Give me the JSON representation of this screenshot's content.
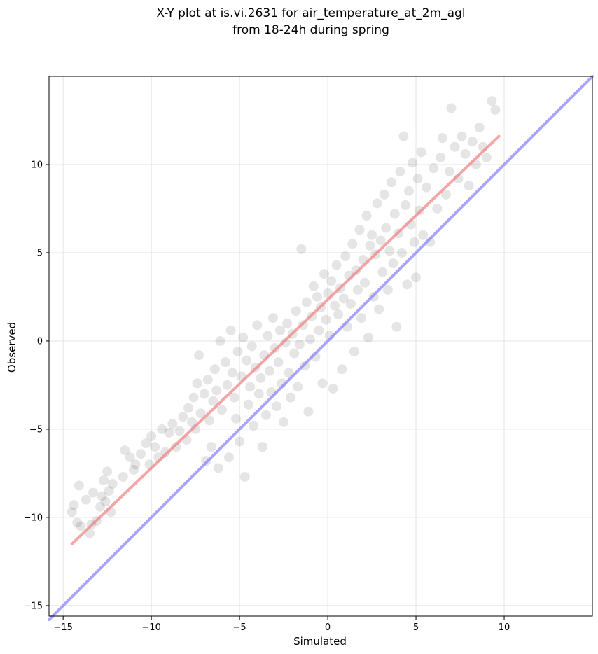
{
  "chart_data": {
    "type": "scatter",
    "title": "X-Y plot at is.vi.2631 for air_temperature_at_2m_agl",
    "subtitle": "from 18-24h during spring",
    "xlabel": "Simulated",
    "ylabel": "Observed",
    "xlim": [
      -15.8,
      15.0
    ],
    "ylim": [
      -15.6,
      15.0
    ],
    "xticks": [
      -15,
      -10,
      -5,
      0,
      5,
      10
    ],
    "yticks": [
      -15,
      -10,
      -5,
      0,
      5,
      10
    ],
    "xtick_labels": [
      "−15",
      "−10",
      "−5",
      "0",
      "5",
      "10"
    ],
    "ytick_labels": [
      "−15",
      "−10",
      "−5",
      "0",
      "5",
      "10"
    ],
    "grid": true,
    "point_color": "#000000",
    "series": [
      {
        "points": [
          [
            -14.5,
            -9.7
          ],
          [
            -14.4,
            -9.3
          ],
          [
            -14.2,
            -10.3
          ],
          [
            -14.1,
            -8.2
          ],
          [
            -14.0,
            -10.5
          ],
          [
            -13.7,
            -9.0
          ],
          [
            -13.5,
            -10.9
          ],
          [
            -13.4,
            -10.4
          ],
          [
            -13.3,
            -8.6
          ],
          [
            -13.1,
            -10.2
          ],
          [
            -12.9,
            -9.4
          ],
          [
            -12.8,
            -8.8
          ],
          [
            -12.7,
            -7.9
          ],
          [
            -12.6,
            -9.1
          ],
          [
            -12.5,
            -7.4
          ],
          [
            -12.4,
            -8.5
          ],
          [
            -12.3,
            -9.7
          ],
          [
            -12.2,
            -8.1
          ],
          [
            -11.6,
            -7.7
          ],
          [
            -11.5,
            -6.2
          ],
          [
            -11.2,
            -6.6
          ],
          [
            -11.0,
            -7.3
          ],
          [
            -10.9,
            -7.0
          ],
          [
            -10.6,
            -6.4
          ],
          [
            -10.3,
            -5.8
          ],
          [
            -10.1,
            -7.0
          ],
          [
            -10.0,
            -5.4
          ],
          [
            -9.8,
            -6.0
          ],
          [
            -9.6,
            -6.6
          ],
          [
            -9.4,
            -5.0
          ],
          [
            -9.2,
            -6.3
          ],
          [
            -9.0,
            -5.2
          ],
          [
            -8.8,
            -4.7
          ],
          [
            -8.6,
            -6.0
          ],
          [
            -8.4,
            -5.1
          ],
          [
            -8.2,
            -4.3
          ],
          [
            -8.0,
            -5.6
          ],
          [
            -7.9,
            -3.8
          ],
          [
            -7.7,
            -4.6
          ],
          [
            -7.6,
            -3.2
          ],
          [
            -7.5,
            -5.0
          ],
          [
            -7.4,
            -2.4
          ],
          [
            -7.3,
            -0.8
          ],
          [
            -7.2,
            -4.1
          ],
          [
            -7.0,
            -3.0
          ],
          [
            -6.9,
            -6.8
          ],
          [
            -6.8,
            -2.2
          ],
          [
            -6.7,
            -4.5
          ],
          [
            -6.6,
            -6.0
          ],
          [
            -6.5,
            -3.4
          ],
          [
            -6.4,
            -1.6
          ],
          [
            -6.3,
            -2.8
          ],
          [
            -6.2,
            -7.2
          ],
          [
            -6.1,
            0.0
          ],
          [
            -6.0,
            -3.9
          ],
          [
            -5.8,
            -1.2
          ],
          [
            -5.7,
            -2.5
          ],
          [
            -5.6,
            -6.6
          ],
          [
            -5.5,
            0.6
          ],
          [
            -5.4,
            -1.8
          ],
          [
            -5.3,
            -3.2
          ],
          [
            -5.2,
            -4.4
          ],
          [
            -5.1,
            -0.6
          ],
          [
            -5.0,
            -5.7
          ],
          [
            -4.9,
            -2.0
          ],
          [
            -4.8,
            0.2
          ],
          [
            -4.7,
            -7.7
          ],
          [
            -4.6,
            -1.1
          ],
          [
            -4.5,
            -3.6
          ],
          [
            -4.4,
            -2.6
          ],
          [
            -4.3,
            -0.3
          ],
          [
            -4.2,
            -4.8
          ],
          [
            -4.1,
            -1.5
          ],
          [
            -4.0,
            0.9
          ],
          [
            -3.9,
            -3.0
          ],
          [
            -3.8,
            -2.1
          ],
          [
            -3.7,
            -6.0
          ],
          [
            -3.6,
            -0.8
          ],
          [
            -3.5,
            -4.2
          ],
          [
            -3.4,
            0.3
          ],
          [
            -3.3,
            -1.7
          ],
          [
            -3.2,
            -2.9
          ],
          [
            -3.1,
            1.3
          ],
          [
            -3.0,
            -0.4
          ],
          [
            -2.9,
            -3.7
          ],
          [
            -2.8,
            -1.2
          ],
          [
            -2.7,
            0.6
          ],
          [
            -2.6,
            -2.4
          ],
          [
            -2.5,
            -4.6
          ],
          [
            -2.4,
            -0.1
          ],
          [
            -2.3,
            1.0
          ],
          [
            -2.2,
            -1.8
          ],
          [
            -2.1,
            -3.2
          ],
          [
            -2.0,
            0.4
          ],
          [
            -1.9,
            -0.7
          ],
          [
            -1.8,
            1.7
          ],
          [
            -1.7,
            -2.6
          ],
          [
            -1.6,
            -0.2
          ],
          [
            -1.5,
            5.2
          ],
          [
            -1.4,
            0.9
          ],
          [
            -1.3,
            -1.4
          ],
          [
            -1.2,
            2.2
          ],
          [
            -1.1,
            -4.0
          ],
          [
            -1.0,
            0.1
          ],
          [
            -0.9,
            1.4
          ],
          [
            -0.8,
            3.1
          ],
          [
            -0.7,
            -0.9
          ],
          [
            -0.6,
            2.5
          ],
          [
            -0.5,
            0.6
          ],
          [
            -0.4,
            1.9
          ],
          [
            -0.3,
            -2.4
          ],
          [
            -0.2,
            3.8
          ],
          [
            -0.1,
            1.2
          ],
          [
            0.0,
            2.7
          ],
          [
            0.1,
            0.3
          ],
          [
            0.2,
            3.4
          ],
          [
            0.3,
            -2.7
          ],
          [
            0.4,
            2.0
          ],
          [
            0.5,
            4.3
          ],
          [
            0.6,
            1.5
          ],
          [
            0.7,
            3.0
          ],
          [
            0.8,
            -1.6
          ],
          [
            0.9,
            2.4
          ],
          [
            1.0,
            4.8
          ],
          [
            1.1,
            0.8
          ],
          [
            1.2,
            3.7
          ],
          [
            1.3,
            2.1
          ],
          [
            1.4,
            5.5
          ],
          [
            1.5,
            -0.6
          ],
          [
            1.6,
            4.0
          ],
          [
            1.7,
            2.9
          ],
          [
            1.8,
            6.3
          ],
          [
            1.9,
            1.3
          ],
          [
            2.0,
            4.6
          ],
          [
            2.1,
            3.3
          ],
          [
            2.2,
            7.1
          ],
          [
            2.3,
            0.2
          ],
          [
            2.4,
            5.4
          ],
          [
            2.5,
            6.0
          ],
          [
            2.6,
            2.5
          ],
          [
            2.7,
            4.9
          ],
          [
            2.8,
            7.8
          ],
          [
            2.9,
            1.8
          ],
          [
            3.0,
            5.7
          ],
          [
            3.1,
            3.9
          ],
          [
            3.2,
            8.3
          ],
          [
            3.3,
            6.4
          ],
          [
            3.4,
            2.9
          ],
          [
            3.5,
            5.1
          ],
          [
            3.6,
            9.0
          ],
          [
            3.7,
            4.4
          ],
          [
            3.8,
            7.2
          ],
          [
            3.9,
            0.8
          ],
          [
            4.0,
            6.1
          ],
          [
            4.1,
            9.6
          ],
          [
            4.2,
            5.0
          ],
          [
            4.3,
            11.6
          ],
          [
            4.4,
            7.7
          ],
          [
            4.5,
            3.2
          ],
          [
            4.6,
            8.5
          ],
          [
            4.7,
            6.6
          ],
          [
            4.8,
            10.1
          ],
          [
            4.9,
            5.6
          ],
          [
            5.0,
            3.6
          ],
          [
            5.1,
            9.2
          ],
          [
            5.2,
            7.4
          ],
          [
            5.3,
            10.7
          ],
          [
            5.4,
            6.0
          ],
          [
            5.6,
            8.7
          ],
          [
            5.8,
            5.6
          ],
          [
            6.0,
            9.8
          ],
          [
            6.2,
            7.5
          ],
          [
            6.4,
            10.4
          ],
          [
            6.5,
            11.5
          ],
          [
            6.7,
            8.3
          ],
          [
            6.9,
            9.6
          ],
          [
            7.0,
            13.2
          ],
          [
            7.2,
            11.0
          ],
          [
            7.4,
            9.2
          ],
          [
            7.6,
            11.6
          ],
          [
            7.8,
            10.6
          ],
          [
            8.0,
            8.8
          ],
          [
            8.2,
            11.3
          ],
          [
            8.4,
            10.0
          ],
          [
            8.6,
            12.1
          ],
          [
            8.8,
            11.0
          ],
          [
            9.0,
            10.4
          ],
          [
            9.3,
            13.6
          ],
          [
            9.5,
            13.1
          ]
        ]
      }
    ],
    "lines": [
      {
        "color": "#f08080",
        "from": [
          -14.5,
          -11.5
        ],
        "to": [
          9.7,
          11.6
        ]
      },
      {
        "color": "#8080ff",
        "from": [
          -15.8,
          -15.8
        ],
        "to": [
          15.0,
          15.0
        ]
      }
    ]
  }
}
